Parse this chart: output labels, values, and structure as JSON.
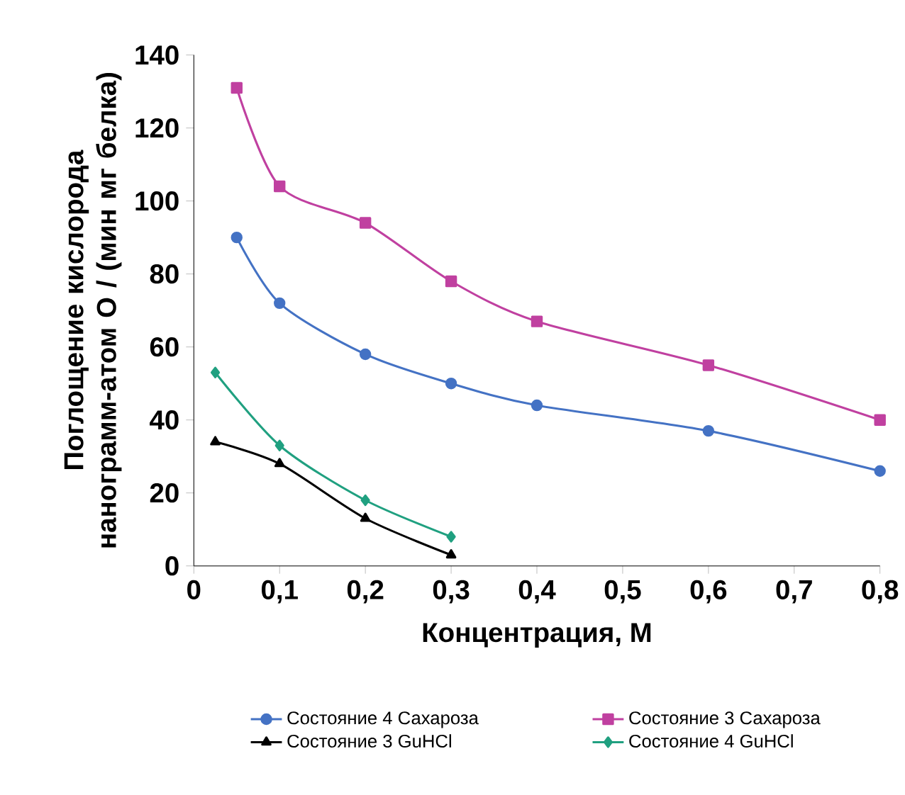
{
  "chart_data": {
    "type": "line",
    "xlabel": "Концентрация, М",
    "ylabel": "Поглощение кислорода нанограмм-атом O / (мин мг белка)",
    "xlim": [
      0,
      0.8
    ],
    "xticks": [
      0,
      {
        "value": 0.1,
        "label": "0,1"
      },
      {
        "value": 0.2,
        "label": "0,2"
      },
      {
        "value": 0.3,
        "label": "0,3"
      },
      {
        "value": 0.4,
        "label": "0,4"
      },
      {
        "value": 0.5,
        "label": "0,5"
      },
      {
        "value": 0.6,
        "label": "0,6"
      },
      {
        "value": 0.7,
        "label": "0,7"
      },
      {
        "value": 0.8,
        "label": "0,8"
      }
    ],
    "ylim": [
      0,
      140
    ],
    "yticks": [
      0,
      20,
      40,
      60,
      80,
      100,
      120,
      140
    ],
    "grid": false,
    "legend": "bottom",
    "series": [
      {
        "name": "Состояние 4 Сахароза",
        "color": "#4472c4",
        "marker": "circle",
        "x": [
          0.05,
          0.1,
          0.2,
          0.3,
          0.4,
          0.6,
          0.8
        ],
        "values": [
          90,
          72,
          58,
          50,
          44,
          37,
          26
        ]
      },
      {
        "name": "Состояние 3 Сахароза",
        "color": "#c040a0",
        "marker": "square",
        "x": [
          0.05,
          0.1,
          0.2,
          0.3,
          0.4,
          0.6,
          0.8
        ],
        "values": [
          131,
          104,
          94,
          78,
          67,
          55,
          40
        ]
      },
      {
        "name": "Состояние 3 GuHCl",
        "color": "#000000",
        "marker": "triangle",
        "x": [
          0.025,
          0.1,
          0.2,
          0.3
        ],
        "values": [
          34,
          28,
          13,
          3
        ]
      },
      {
        "name": "Состояние 4 GuHCl",
        "color": "#20a080",
        "marker": "diamond",
        "x": [
          0.025,
          0.1,
          0.2,
          0.3
        ],
        "values": [
          53,
          33,
          18,
          8
        ]
      }
    ]
  }
}
